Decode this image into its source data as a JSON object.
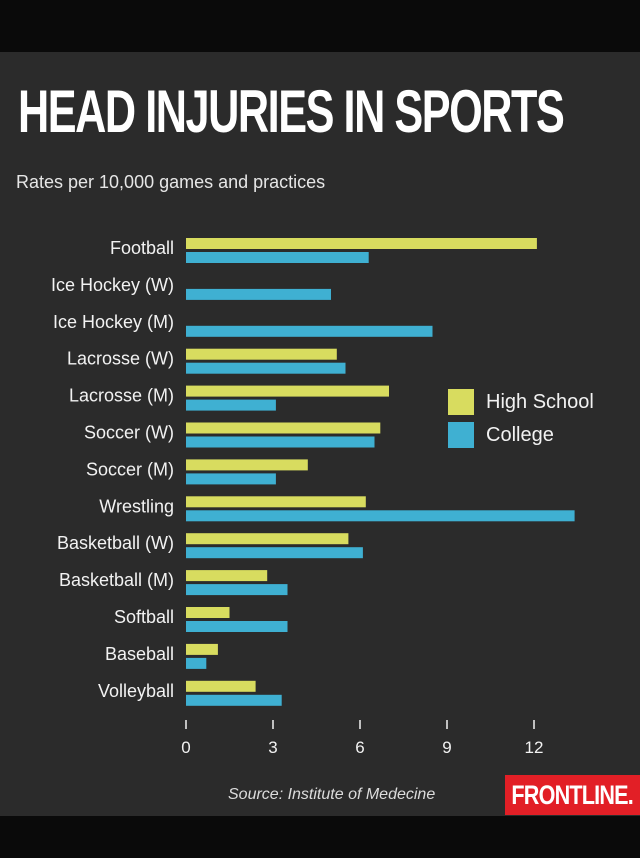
{
  "title": "HEAD INJURIES IN SPORTS",
  "subtitle": "Rates per 10,000 games and practices",
  "source": "Source: Institute of Medecine",
  "logo": "FRONTLINE.",
  "colors": {
    "background": "#2b2b2b",
    "high_school": "#d8dc5f",
    "college": "#3fb0d2",
    "logo": "#e21f26"
  },
  "chart_data": {
    "type": "bar",
    "orientation": "horizontal",
    "title": "HEAD INJURIES IN SPORTS",
    "subtitle": "Rates per 10,000 games and practices",
    "categories": [
      "Football",
      "Ice Hockey (W)",
      "Ice Hockey (M)",
      "Lacrosse (W)",
      "Lacrosse (M)",
      "Soccer (W)",
      "Soccer (M)",
      "Wrestling",
      "Basketball (W)",
      "Basketball (M)",
      "Softball",
      "Baseball",
      "Volleyball"
    ],
    "series": [
      {
        "name": "High School",
        "color": "#d8dc5f",
        "values": [
          12.1,
          null,
          null,
          5.2,
          7.0,
          6.7,
          4.2,
          6.2,
          5.6,
          2.8,
          1.5,
          1.1,
          2.4
        ]
      },
      {
        "name": "College",
        "color": "#3fb0d2",
        "values": [
          6.3,
          5.0,
          8.5,
          5.5,
          3.1,
          6.5,
          3.1,
          13.4,
          6.1,
          3.5,
          3.5,
          0.7,
          3.3
        ]
      }
    ],
    "xticks": [
      0,
      3,
      6,
      9,
      12
    ],
    "xlim": [
      0,
      13.5
    ],
    "legend": "right",
    "grid": false
  }
}
